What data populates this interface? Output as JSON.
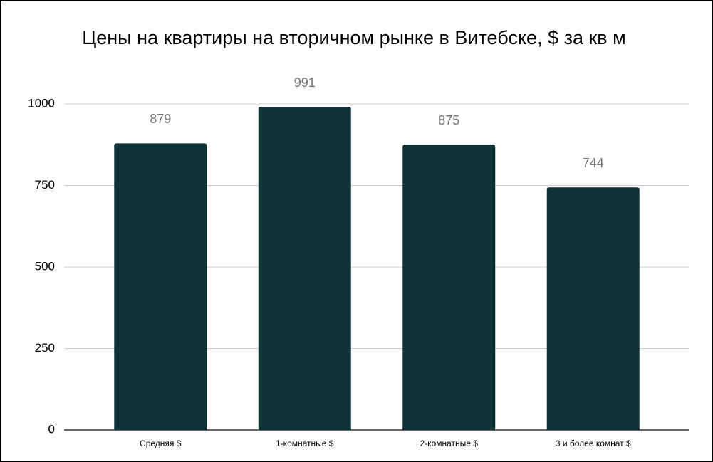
{
  "chart_data": {
    "type": "bar",
    "title": "Цены на квартиры на вторичном рынке в Витебске, $ за кв м",
    "categories": [
      "Средняя $",
      "1-комнатные $",
      "2-комнатные $",
      "3 и более комнат $"
    ],
    "values": [
      879,
      991,
      875,
      744
    ],
    "color": "#0e3438",
    "ylim": [
      0,
      1000
    ],
    "yticks": [
      0,
      250,
      500,
      750,
      1000
    ],
    "grid": true
  }
}
